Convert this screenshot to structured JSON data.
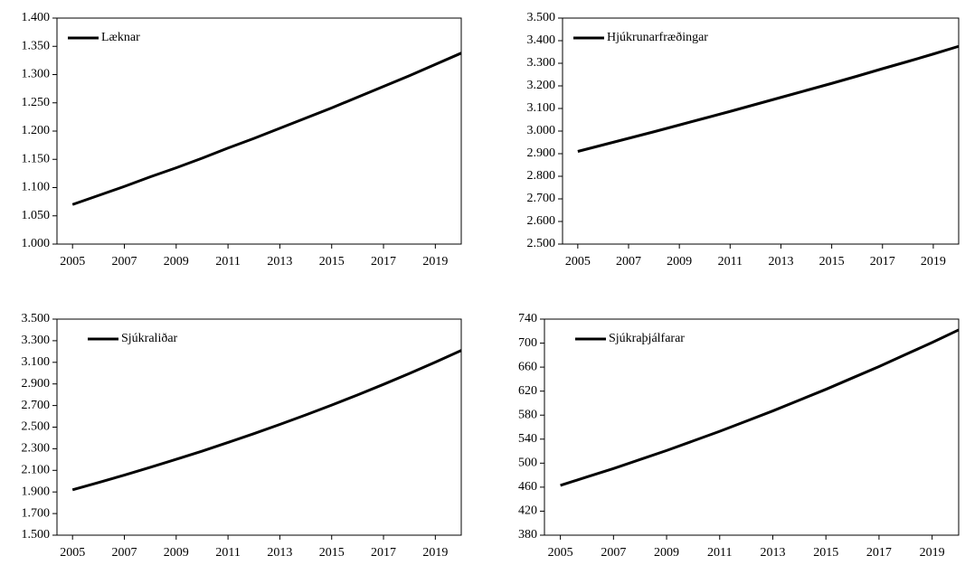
{
  "chart_data": [
    {
      "type": "line",
      "legend": "upper left",
      "x": [
        2005,
        2006,
        2007,
        2008,
        2009,
        2010,
        2011,
        2012,
        2013,
        2014,
        2015,
        2016,
        2017,
        2018,
        2019,
        2020
      ],
      "series": [
        {
          "name": "Læknar",
          "color": "#000000",
          "values": [
            1070,
            1086,
            1102,
            1119,
            1135,
            1152,
            1170,
            1187,
            1205,
            1223,
            1241,
            1260,
            1279,
            1298,
            1318,
            1338
          ]
        }
      ],
      "xlim": [
        2004.4,
        2020
      ],
      "xticks": [
        2005,
        2007,
        2009,
        2011,
        2013,
        2015,
        2017,
        2019
      ],
      "ylim": [
        1000,
        1400
      ],
      "yticks": [
        {
          "value": 1000,
          "label": "1.000"
        },
        {
          "value": 1050,
          "label": "1.050"
        },
        {
          "value": 1100,
          "label": "1.100"
        },
        {
          "value": 1150,
          "label": "1.150"
        },
        {
          "value": 1200,
          "label": "1.200"
        },
        {
          "value": 1250,
          "label": "1.250"
        },
        {
          "value": 1300,
          "label": "1.300"
        },
        {
          "value": 1350,
          "label": "1.350"
        },
        {
          "value": 1400,
          "label": "1.400"
        }
      ]
    },
    {
      "type": "line",
      "legend": "upper left",
      "x": [
        2005,
        2006,
        2007,
        2008,
        2009,
        2010,
        2011,
        2012,
        2013,
        2014,
        2015,
        2016,
        2017,
        2018,
        2019,
        2020
      ],
      "series": [
        {
          "name": "Hjúkrunarfræðingar",
          "color": "#000000",
          "values": [
            2910,
            2939,
            2968,
            2997,
            3027,
            3057,
            3087,
            3118,
            3149,
            3180,
            3211,
            3243,
            3276,
            3308,
            3341,
            3375
          ]
        }
      ],
      "xlim": [
        2004.4,
        2020
      ],
      "xticks": [
        2005,
        2007,
        2009,
        2011,
        2013,
        2015,
        2017,
        2019
      ],
      "ylim": [
        2500,
        3500
      ],
      "yticks": [
        {
          "value": 2500,
          "label": "2.500"
        },
        {
          "value": 2600,
          "label": "2.600"
        },
        {
          "value": 2700,
          "label": "2.700"
        },
        {
          "value": 2800,
          "label": "2.800"
        },
        {
          "value": 2900,
          "label": "2.900"
        },
        {
          "value": 3000,
          "label": "3.000"
        },
        {
          "value": 3100,
          "label": "3.100"
        },
        {
          "value": 3200,
          "label": "3.200"
        },
        {
          "value": 3300,
          "label": "3.300"
        },
        {
          "value": 3400,
          "label": "3.400"
        },
        {
          "value": 3500,
          "label": "3.500"
        }
      ]
    },
    {
      "type": "line",
      "legend": "upper left",
      "x": [
        2005,
        2006,
        2007,
        2008,
        2009,
        2010,
        2011,
        2012,
        2013,
        2014,
        2015,
        2016,
        2017,
        2018,
        2019,
        2020
      ],
      "series": [
        {
          "name": "Sjúkraliðar",
          "color": "#000000",
          "values": [
            1920,
            1987,
            2056,
            2128,
            2202,
            2278,
            2358,
            2440,
            2525,
            2613,
            2704,
            2798,
            2896,
            2997,
            3101,
            3210
          ]
        }
      ],
      "xlim": [
        2004.4,
        2020
      ],
      "xticks": [
        2005,
        2007,
        2009,
        2011,
        2013,
        2015,
        2017,
        2019
      ],
      "ylim": [
        1500,
        3500
      ],
      "yticks": [
        {
          "value": 1500,
          "label": "1.500"
        },
        {
          "value": 1700,
          "label": "1.700"
        },
        {
          "value": 1900,
          "label": "1.900"
        },
        {
          "value": 2100,
          "label": "2.100"
        },
        {
          "value": 2300,
          "label": "2.300"
        },
        {
          "value": 2500,
          "label": "2.500"
        },
        {
          "value": 2700,
          "label": "2.700"
        },
        {
          "value": 2900,
          "label": "2.900"
        },
        {
          "value": 3100,
          "label": "3.100"
        },
        {
          "value": 3300,
          "label": "3.300"
        },
        {
          "value": 3500,
          "label": "3.500"
        }
      ]
    },
    {
      "type": "line",
      "legend": "upper left",
      "x": [
        2005,
        2006,
        2007,
        2008,
        2009,
        2010,
        2011,
        2012,
        2013,
        2014,
        2015,
        2016,
        2017,
        2018,
        2019,
        2020
      ],
      "series": [
        {
          "name": "Sjúkraþjálfarar",
          "color": "#000000",
          "values": [
            463,
            477,
            491,
            506,
            521,
            537,
            553,
            570,
            587,
            605,
            623,
            642,
            661,
            681,
            701,
            722
          ]
        }
      ],
      "xlim": [
        2004.4,
        2020
      ],
      "xticks": [
        2005,
        2007,
        2009,
        2011,
        2013,
        2015,
        2017,
        2019
      ],
      "ylim": [
        380,
        740
      ],
      "yticks": [
        380,
        420,
        460,
        500,
        540,
        580,
        620,
        660,
        700,
        740
      ]
    }
  ]
}
